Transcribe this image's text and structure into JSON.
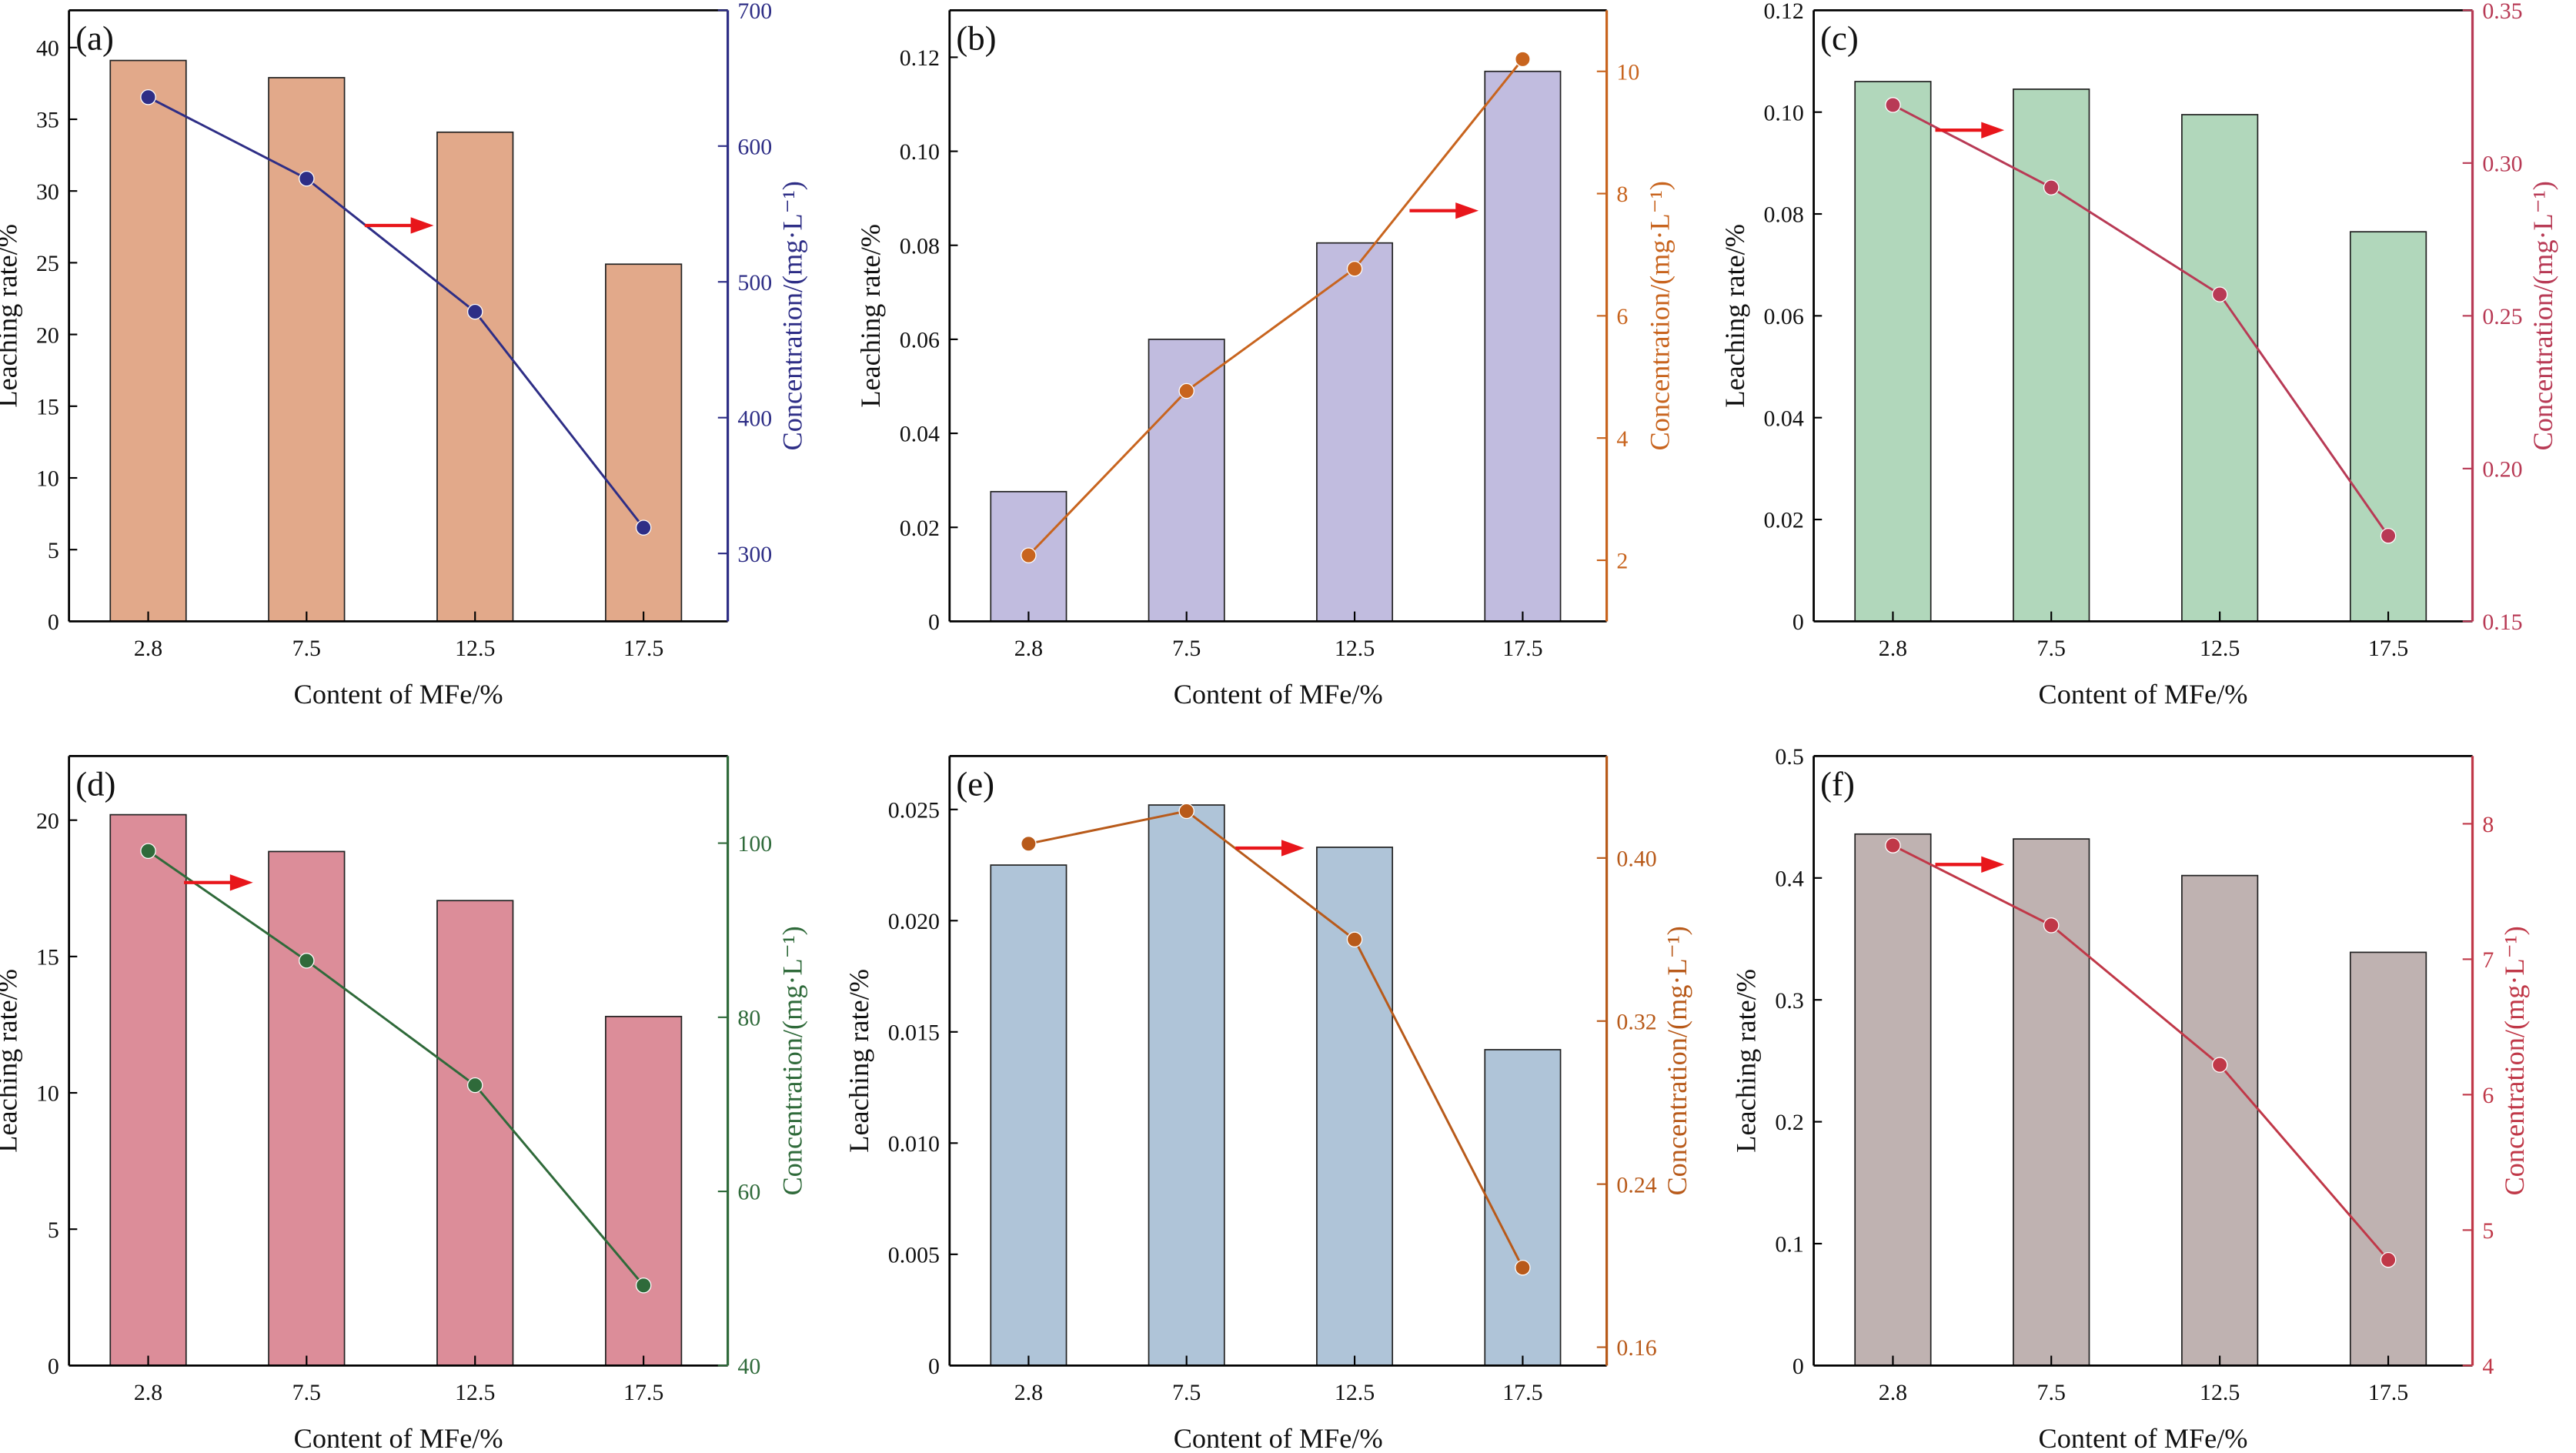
{
  "chart_data": [
    {
      "panel": "(a)",
      "type": "bar+line",
      "xlabel": "Content of MFe/%",
      "ylabel": "Leaching rate/%",
      "y2label": "Concentration/(mg·L⁻¹)",
      "categories": [
        "2.8",
        "7.5",
        "12.5",
        "17.5"
      ],
      "x": [
        2.8,
        7.5,
        12.5,
        17.5
      ],
      "bar_values": [
        39.1,
        37.9,
        34.1,
        24.9
      ],
      "line_values": [
        636,
        576,
        478,
        319
      ],
      "ylim": [
        0,
        42.6
      ],
      "y2lim": [
        250,
        700
      ],
      "yticks": [
        0,
        5,
        10,
        15,
        20,
        25,
        30,
        35,
        40
      ],
      "yticklabels": [
        "0",
        "5",
        "10",
        "15",
        "20",
        "25",
        "30",
        "35",
        "40"
      ],
      "y2ticks": [
        300,
        400,
        500,
        600,
        700
      ],
      "y2ticklabels": [
        "300",
        "400",
        "500",
        "600",
        "700"
      ],
      "bar_color": "#E2A98A",
      "line_color": "#2E2E86"
    },
    {
      "panel": "(b)",
      "type": "bar+line",
      "xlabel": "Content of MFe/%",
      "ylabel": "Leaching rate/%",
      "y2label": "Concentration/(mg·L⁻¹)",
      "categories": [
        "2.8",
        "7.5",
        "12.5",
        "17.5"
      ],
      "x": [
        2.8,
        7.5,
        12.5,
        17.5
      ],
      "bar_values": [
        0.0276,
        0.06,
        0.0805,
        0.117
      ],
      "line_values": [
        2.08,
        4.77,
        6.77,
        10.2
      ],
      "ylim": [
        0,
        0.13
      ],
      "y2lim": [
        1,
        11
      ],
      "yticks": [
        0,
        0.02,
        0.04,
        0.06,
        0.08,
        0.1,
        0.12
      ],
      "yticklabels": [
        "0",
        "0.02",
        "0.04",
        "0.06",
        "0.08",
        "0.10",
        "0.12"
      ],
      "y2ticks": [
        2,
        4,
        6,
        8,
        10
      ],
      "y2ticklabels": [
        "2",
        "4",
        "6",
        "8",
        "10"
      ],
      "bar_color": "#C1BCDF",
      "line_color": "#C8641E"
    },
    {
      "panel": "(c)",
      "type": "bar+line",
      "xlabel": "Content of MFe/%",
      "ylabel": "Leaching rate/%",
      "y2label": "Concentration/(mg·L⁻¹)",
      "categories": [
        "2.8",
        "7.5",
        "12.5",
        "17.5"
      ],
      "x": [
        2.8,
        7.5,
        12.5,
        17.5
      ],
      "bar_values": [
        0.106,
        0.1045,
        0.0995,
        0.0765
      ],
      "line_values": [
        0.319,
        0.292,
        0.257,
        0.178
      ],
      "ylim": [
        0,
        0.12
      ],
      "y2lim": [
        0.15,
        0.35
      ],
      "yticks": [
        0,
        0.02,
        0.04,
        0.06,
        0.08,
        0.1,
        0.12
      ],
      "yticklabels": [
        "0",
        "0.02",
        "0.04",
        "0.06",
        "0.08",
        "0.10",
        "0.12"
      ],
      "y2ticks": [
        0.15,
        0.2,
        0.25,
        0.3,
        0.35
      ],
      "y2ticklabels": [
        "0.15",
        "0.20",
        "0.25",
        "0.30",
        "0.35"
      ],
      "bar_color": "#B1D7BB",
      "line_color": "#B83A55"
    },
    {
      "panel": "(d)",
      "type": "bar+line",
      "xlabel": "Content of MFe/%",
      "ylabel": "Leaching rate/%",
      "y2label": "Concentration/(mg·L⁻¹)",
      "categories": [
        "2.8",
        "7.5",
        "12.5",
        "17.5"
      ],
      "x": [
        2.8,
        7.5,
        12.5,
        17.5
      ],
      "bar_values": [
        20.2,
        18.85,
        17.05,
        12.8
      ],
      "line_values": [
        99.1,
        86.5,
        72.2,
        49.2
      ],
      "ylim": [
        0,
        22.35
      ],
      "y2lim": [
        40,
        110
      ],
      "yticks": [
        0,
        5,
        10,
        15,
        20
      ],
      "yticklabels": [
        "0",
        "5",
        "10",
        "15",
        "20"
      ],
      "y2ticks": [
        40,
        60,
        80,
        100
      ],
      "y2ticklabels": [
        "40",
        "60",
        "80",
        "100"
      ],
      "bar_color": "#DC8D99",
      "line_color": "#2F6A3A"
    },
    {
      "panel": "(e)",
      "type": "bar+line",
      "xlabel": "Content of MFe/%",
      "ylabel": "Leaching rate/%",
      "y2label": "Concentration/(mg·L⁻¹)",
      "categories": [
        "2.8",
        "7.5",
        "12.5",
        "17.5"
      ],
      "x": [
        2.8,
        7.5,
        12.5,
        17.5
      ],
      "bar_values": [
        0.0225,
        0.0252,
        0.0233,
        0.0142
      ],
      "line_values": [
        0.407,
        0.423,
        0.36,
        0.199
      ],
      "ylim": [
        0,
        0.0274
      ],
      "y2lim": [
        0.151,
        0.45
      ],
      "yticks": [
        0,
        0.005,
        0.01,
        0.015,
        0.02,
        0.025
      ],
      "yticklabels": [
        "0",
        "0.005",
        "0.010",
        "0.015",
        "0.020",
        "0.025"
      ],
      "y2ticks": [
        0.16,
        0.24,
        0.32,
        0.4
      ],
      "y2ticklabels": [
        "0.16",
        "0.24",
        "0.32",
        "0.40"
      ],
      "bar_color": "#AFC4D8",
      "line_color": "#B85A1A"
    },
    {
      "panel": "(f)",
      "type": "bar+line",
      "xlabel": "Content of MFe/%",
      "ylabel": "Leaching rate/%",
      "y2label": "Concentration/(mg·L⁻¹)",
      "categories": [
        "2.8",
        "7.5",
        "12.5",
        "17.5"
      ],
      "x": [
        2.8,
        7.5,
        12.5,
        17.5
      ],
      "bar_values": [
        0.436,
        0.432,
        0.402,
        0.339
      ],
      "line_values": [
        7.84,
        7.25,
        6.22,
        4.78
      ],
      "ylim": [
        0,
        0.5
      ],
      "y2lim": [
        4,
        8.5
      ],
      "yticks": [
        0,
        0.1,
        0.2,
        0.3,
        0.4,
        0.5
      ],
      "yticklabels": [
        "0",
        "0.1",
        "0.2",
        "0.3",
        "0.4",
        "0.5"
      ],
      "y2ticks": [
        4,
        5,
        6,
        7,
        8
      ],
      "y2ticklabels": [
        "4",
        "5",
        "6",
        "7",
        "8"
      ],
      "bar_color": "#BFB2B1",
      "line_color": "#C03848"
    }
  ],
  "arrow_color": "#E8161B"
}
